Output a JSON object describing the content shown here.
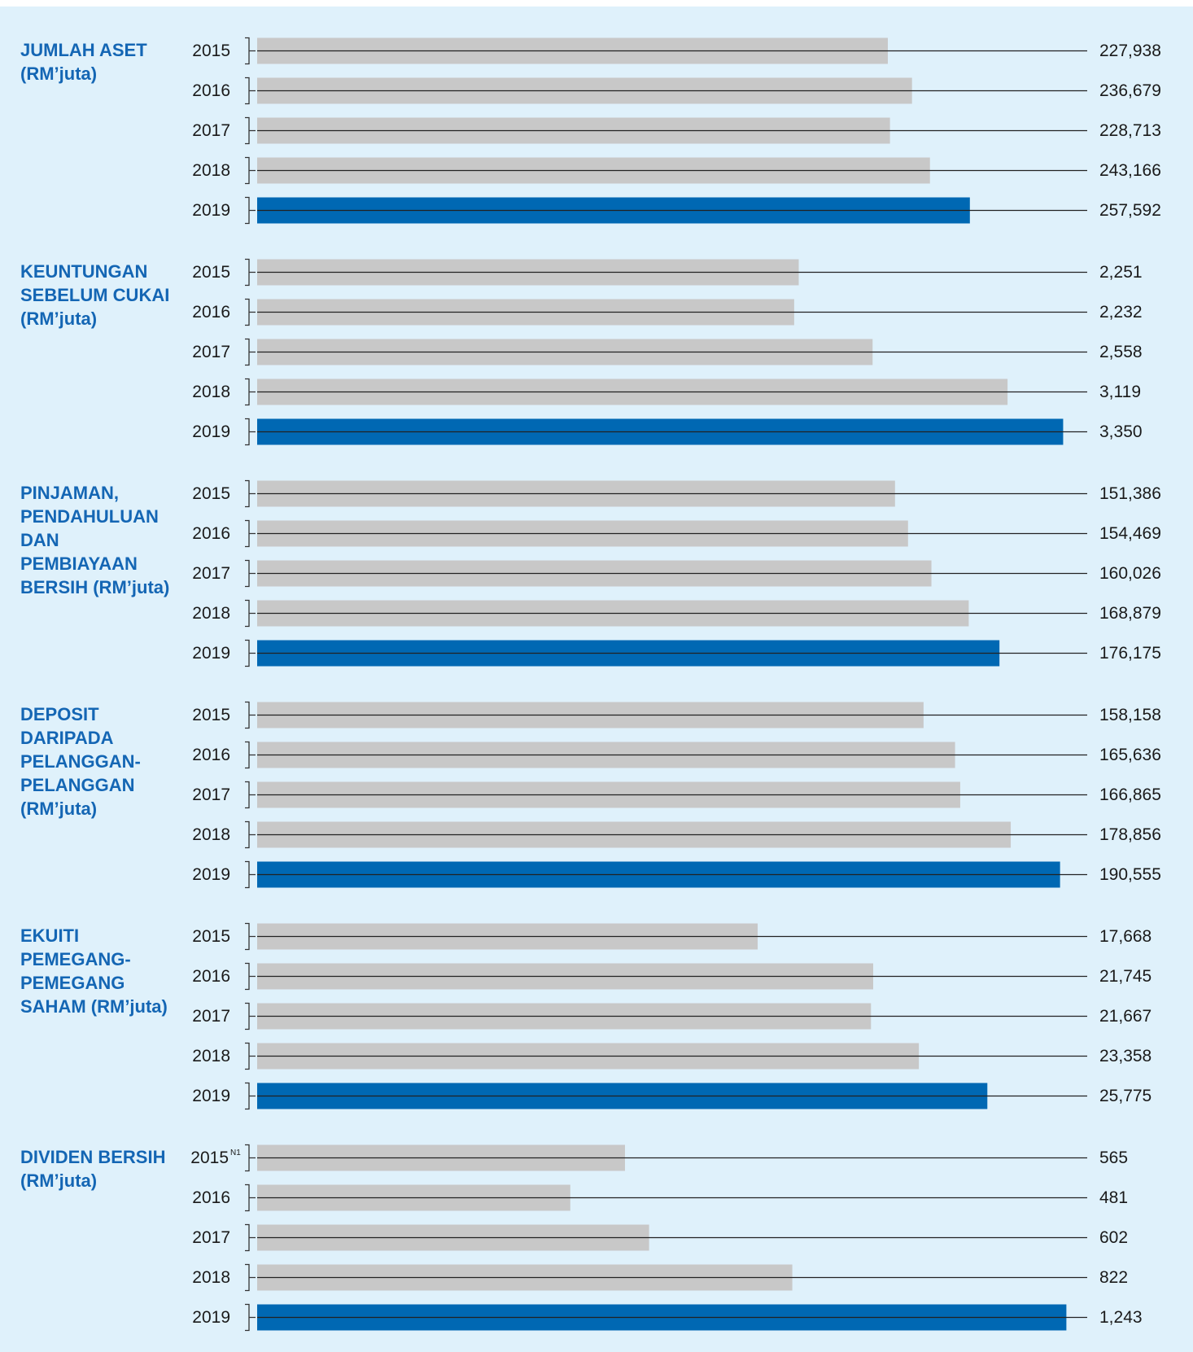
{
  "chart_data": [
    {
      "type": "bar",
      "title": "JUMLAH ASET (RM’juta)",
      "categories": [
        "2015",
        "2016",
        "2017",
        "2018",
        "2019"
      ],
      "values": [
        227938,
        236679,
        228713,
        243166,
        257592
      ],
      "value_labels": [
        "227,938",
        "236,679",
        "228,713",
        "243,166",
        "257,592"
      ],
      "colors": [
        "#c8c8c8",
        "#c8c8c8",
        "#c8c8c8",
        "#c8c8c8",
        "#0068b3"
      ],
      "xlim": [
        0,
        300000
      ]
    },
    {
      "type": "bar",
      "title": "KEUNTUNGAN SEBELUM CUKAI (RM’juta)",
      "categories": [
        "2015",
        "2016",
        "2017",
        "2018",
        "2019"
      ],
      "values": [
        2251,
        2232,
        2558,
        3119,
        3350
      ],
      "value_labels": [
        "2,251",
        "2,232",
        "2,558",
        "3,119",
        "3,350"
      ],
      "colors": [
        "#c8c8c8",
        "#c8c8c8",
        "#c8c8c8",
        "#c8c8c8",
        "#0068b3"
      ],
      "xlim": [
        0,
        3450
      ]
    },
    {
      "type": "bar",
      "title": "PINJAMAN, PENDAHULUAN DAN PEMBIAYAAN BERSIH (RM’juta)",
      "categories": [
        "2015",
        "2016",
        "2017",
        "2018",
        "2019"
      ],
      "values": [
        151386,
        154469,
        160026,
        168879,
        176175
      ],
      "value_labels": [
        "151,386",
        "154,469",
        "160,026",
        "168,879",
        "176,175"
      ],
      "colors": [
        "#c8c8c8",
        "#c8c8c8",
        "#c8c8c8",
        "#c8c8c8",
        "#0068b3"
      ],
      "xlim": [
        0,
        197000
      ]
    },
    {
      "type": "bar",
      "title": "DEPOSIT DARIPADA PELANGGAN-PELANGGAN (RM’juta)",
      "categories": [
        "2015",
        "2016",
        "2017",
        "2018",
        "2019"
      ],
      "values": [
        158158,
        165636,
        166865,
        178856,
        190555
      ],
      "value_labels": [
        "158,158",
        "165,636",
        "166,865",
        "178,856",
        "190,555"
      ],
      "colors": [
        "#c8c8c8",
        "#c8c8c8",
        "#c8c8c8",
        "#c8c8c8",
        "#0068b3"
      ],
      "xlim": [
        0,
        197000
      ]
    },
    {
      "type": "bar",
      "title": "EKUITI PEMEGANG-PEMEGANG SAHAM (RM’juta)",
      "categories": [
        "2015",
        "2016",
        "2017",
        "2018",
        "2019"
      ],
      "values": [
        17668,
        21745,
        21667,
        23358,
        25775
      ],
      "value_labels": [
        "17,668",
        "21,745",
        "21,667",
        "23,358",
        "25,775"
      ],
      "colors": [
        "#c8c8c8",
        "#c8c8c8",
        "#c8c8c8",
        "#c8c8c8",
        "#0068b3"
      ],
      "xlim": [
        0,
        29300
      ]
    },
    {
      "type": "bar",
      "title": "DIVIDEN BERSIH (RM’juta)",
      "categories": [
        "2015",
        "2016",
        "2017",
        "2018",
        "2019"
      ],
      "category_notes": [
        "N1",
        null,
        null,
        null,
        null
      ],
      "values": [
        565,
        481,
        602,
        822,
        1243
      ],
      "value_labels": [
        "565",
        "481",
        "602",
        "822",
        "1,243"
      ],
      "colors": [
        "#c8c8c8",
        "#c8c8c8",
        "#c8c8c8",
        "#c8c8c8",
        "#0068b3"
      ],
      "xlim": [
        0,
        1275
      ]
    }
  ]
}
